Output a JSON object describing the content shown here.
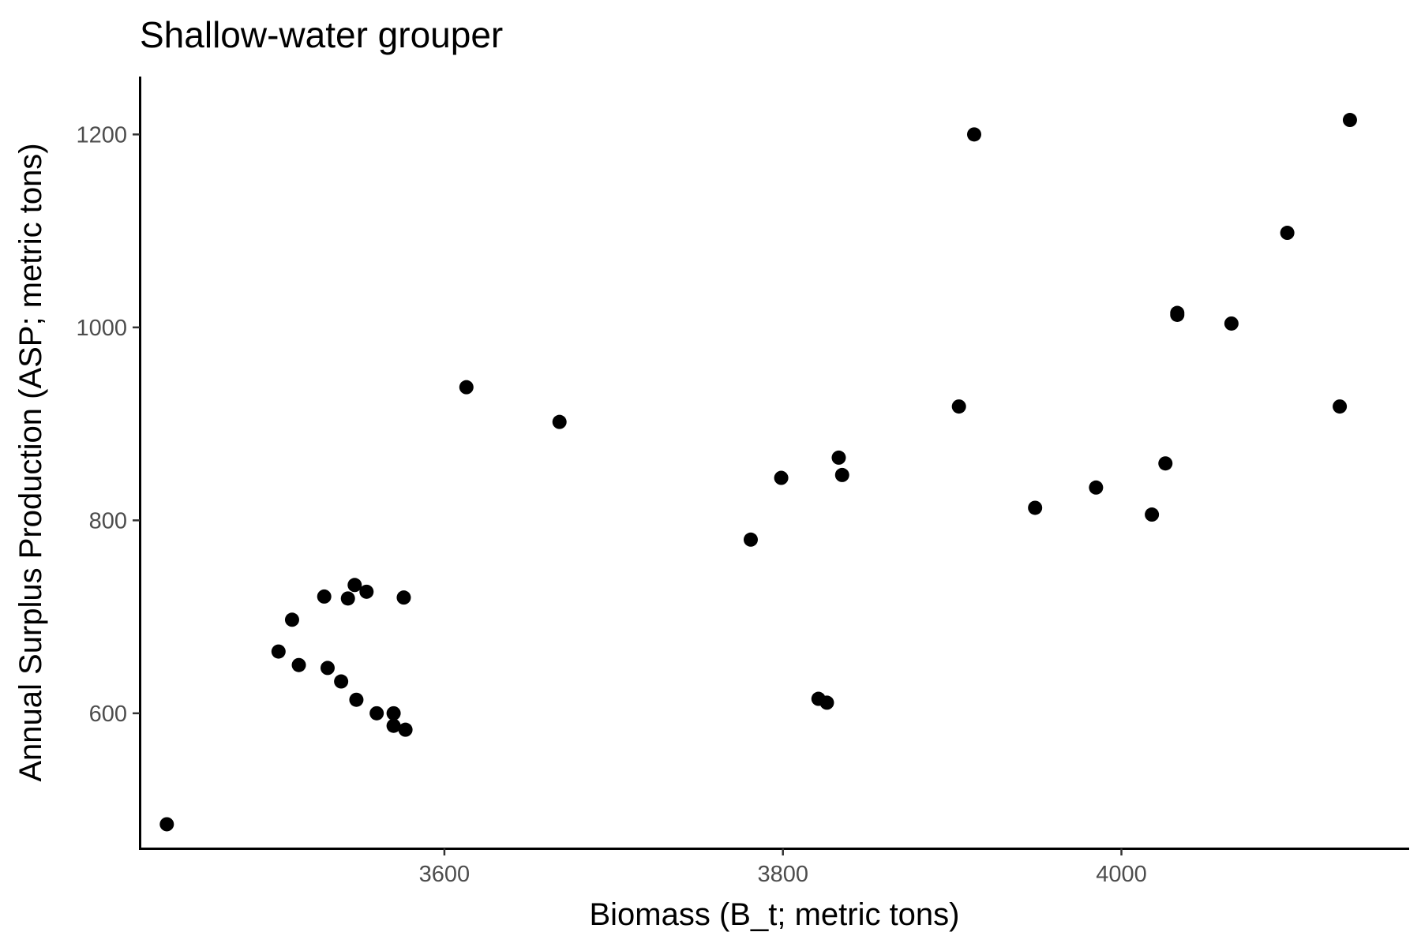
{
  "chart_data": {
    "type": "scatter",
    "title": "Shallow-water grouper",
    "xlabel": "Biomass (B_t; metric tons)",
    "ylabel": "Annual Surplus Production (ASP; metric tons)",
    "xlim": [
      3420,
      4170
    ],
    "ylim": [
      460,
      1260
    ],
    "xticks": [
      3600,
      3800,
      4000
    ],
    "yticks": [
      600,
      800,
      1000,
      1200
    ],
    "grid": false,
    "legend": "none",
    "point_color": "#000000",
    "points": [
      {
        "x": 3436,
        "y": 485
      },
      {
        "x": 3502,
        "y": 664
      },
      {
        "x": 3510,
        "y": 697
      },
      {
        "x": 3514,
        "y": 650
      },
      {
        "x": 3529,
        "y": 721
      },
      {
        "x": 3531,
        "y": 647
      },
      {
        "x": 3539,
        "y": 633
      },
      {
        "x": 3543,
        "y": 719
      },
      {
        "x": 3547,
        "y": 733
      },
      {
        "x": 3548,
        "y": 614
      },
      {
        "x": 3554,
        "y": 726
      },
      {
        "x": 3560,
        "y": 600
      },
      {
        "x": 3570,
        "y": 600
      },
      {
        "x": 3570,
        "y": 587
      },
      {
        "x": 3576,
        "y": 720
      },
      {
        "x": 3577,
        "y": 583
      },
      {
        "x": 3613,
        "y": 938
      },
      {
        "x": 3668,
        "y": 902
      },
      {
        "x": 3781,
        "y": 780
      },
      {
        "x": 3799,
        "y": 844
      },
      {
        "x": 3821,
        "y": 615
      },
      {
        "x": 3826,
        "y": 611
      },
      {
        "x": 3833,
        "y": 865
      },
      {
        "x": 3835,
        "y": 847
      },
      {
        "x": 3904,
        "y": 918
      },
      {
        "x": 3913,
        "y": 1200
      },
      {
        "x": 3949,
        "y": 813
      },
      {
        "x": 3985,
        "y": 834
      },
      {
        "x": 4018,
        "y": 806
      },
      {
        "x": 4026,
        "y": 859
      },
      {
        "x": 4033,
        "y": 1015
      },
      {
        "x": 4033,
        "y": 1013
      },
      {
        "x": 4065,
        "y": 1004
      },
      {
        "x": 4098,
        "y": 1098
      },
      {
        "x": 4129,
        "y": 918
      },
      {
        "x": 4135,
        "y": 1215
      }
    ]
  }
}
